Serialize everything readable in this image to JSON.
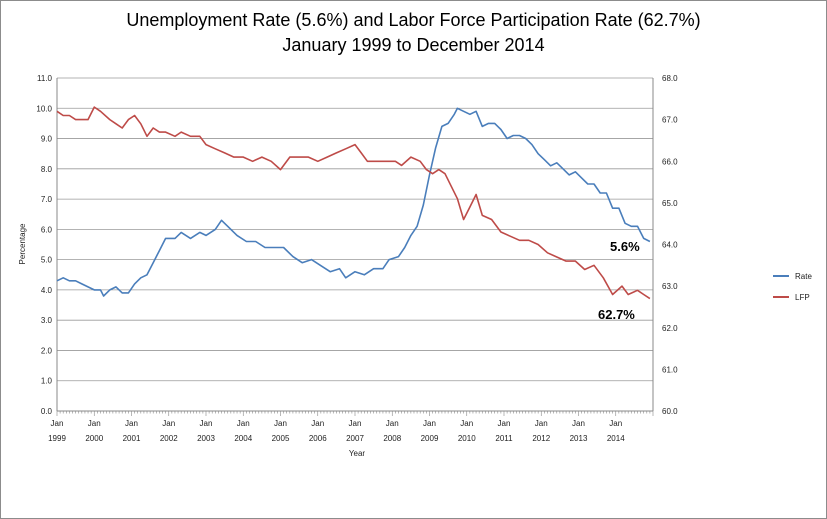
{
  "chart_data": {
    "type": "line",
    "title": "Unemployment Rate (5.6%) and Labor Force Participation Rate (62.7%)",
    "subtitle": "January 1999 to December 2014",
    "xlabel": "Year",
    "ylabel": "Percentage",
    "ylim": [
      0,
      11
    ],
    "y2lim": [
      60,
      68
    ],
    "yticks": [
      "0.0",
      "1.0",
      "2.0",
      "3.0",
      "4.0",
      "5.0",
      "6.0",
      "7.0",
      "8.0",
      "9.0",
      "10.0",
      "11.0"
    ],
    "y2ticks": [
      "60.0",
      "61.0",
      "62.0",
      "63.0",
      "64.0",
      "65.0",
      "66.0",
      "67.0",
      "68.0"
    ],
    "xticks": [
      {
        "month": "Jan",
        "year": "1999"
      },
      {
        "month": "Jan",
        "year": "2000"
      },
      {
        "month": "Jan",
        "year": "2001"
      },
      {
        "month": "Jan",
        "year": "2002"
      },
      {
        "month": "Jan",
        "year": "2003"
      },
      {
        "month": "Jan",
        "year": "2004"
      },
      {
        "month": "Jan",
        "year": "2005"
      },
      {
        "month": "Jan",
        "year": "2006"
      },
      {
        "month": "Jan",
        "year": "2007"
      },
      {
        "month": "Jan",
        "year": "2008"
      },
      {
        "month": "Jan",
        "year": "2009"
      },
      {
        "month": "Jan",
        "year": "2010"
      },
      {
        "month": "Jan",
        "year": "2011"
      },
      {
        "month": "Jan",
        "year": "2012"
      },
      {
        "month": "Jan",
        "year": "2013"
      },
      {
        "month": "Jan",
        "year": "2014"
      }
    ],
    "grid": true,
    "legend_position": "right",
    "series": [
      {
        "name": "Rate",
        "axis": "left",
        "color": "#4a7ebb",
        "points": [
          [
            "1999-01",
            4.3
          ],
          [
            "1999-03",
            4.4
          ],
          [
            "1999-05",
            4.3
          ],
          [
            "1999-07",
            4.3
          ],
          [
            "1999-09",
            4.2
          ],
          [
            "1999-11",
            4.1
          ],
          [
            "2000-01",
            4.0
          ],
          [
            "2000-03",
            4.0
          ],
          [
            "2000-04",
            3.8
          ],
          [
            "2000-06",
            4.0
          ],
          [
            "2000-08",
            4.1
          ],
          [
            "2000-10",
            3.9
          ],
          [
            "2000-12",
            3.9
          ],
          [
            "2001-02",
            4.2
          ],
          [
            "2001-04",
            4.4
          ],
          [
            "2001-06",
            4.5
          ],
          [
            "2001-08",
            4.9
          ],
          [
            "2001-10",
            5.3
          ],
          [
            "2001-12",
            5.7
          ],
          [
            "2002-03",
            5.7
          ],
          [
            "2002-05",
            5.9
          ],
          [
            "2002-08",
            5.7
          ],
          [
            "2002-11",
            5.9
          ],
          [
            "2003-01",
            5.8
          ],
          [
            "2003-04",
            6.0
          ],
          [
            "2003-06",
            6.3
          ],
          [
            "2003-08",
            6.1
          ],
          [
            "2003-11",
            5.8
          ],
          [
            "2004-02",
            5.6
          ],
          [
            "2004-05",
            5.6
          ],
          [
            "2004-08",
            5.4
          ],
          [
            "2004-11",
            5.4
          ],
          [
            "2005-02",
            5.4
          ],
          [
            "2005-05",
            5.1
          ],
          [
            "2005-08",
            4.9
          ],
          [
            "2005-11",
            5.0
          ],
          [
            "2006-02",
            4.8
          ],
          [
            "2006-05",
            4.6
          ],
          [
            "2006-08",
            4.7
          ],
          [
            "2006-10",
            4.4
          ],
          [
            "2007-01",
            4.6
          ],
          [
            "2007-04",
            4.5
          ],
          [
            "2007-07",
            4.7
          ],
          [
            "2007-10",
            4.7
          ],
          [
            "2007-12",
            5.0
          ],
          [
            "2008-03",
            5.1
          ],
          [
            "2008-05",
            5.4
          ],
          [
            "2008-07",
            5.8
          ],
          [
            "2008-09",
            6.1
          ],
          [
            "2008-11",
            6.8
          ],
          [
            "2009-01",
            7.8
          ],
          [
            "2009-03",
            8.7
          ],
          [
            "2009-05",
            9.4
          ],
          [
            "2009-07",
            9.5
          ],
          [
            "2009-09",
            9.8
          ],
          [
            "2009-10",
            10.0
          ],
          [
            "2009-12",
            9.9
          ],
          [
            "2010-02",
            9.8
          ],
          [
            "2010-04",
            9.9
          ],
          [
            "2010-06",
            9.4
          ],
          [
            "2010-08",
            9.5
          ],
          [
            "2010-10",
            9.5
          ],
          [
            "2010-12",
            9.3
          ],
          [
            "2011-02",
            9.0
          ],
          [
            "2011-04",
            9.1
          ],
          [
            "2011-06",
            9.1
          ],
          [
            "2011-08",
            9.0
          ],
          [
            "2011-10",
            8.8
          ],
          [
            "2011-12",
            8.5
          ],
          [
            "2012-02",
            8.3
          ],
          [
            "2012-04",
            8.1
          ],
          [
            "2012-06",
            8.2
          ],
          [
            "2012-08",
            8.0
          ],
          [
            "2012-10",
            7.8
          ],
          [
            "2012-12",
            7.9
          ],
          [
            "2013-02",
            7.7
          ],
          [
            "2013-04",
            7.5
          ],
          [
            "2013-06",
            7.5
          ],
          [
            "2013-08",
            7.2
          ],
          [
            "2013-10",
            7.2
          ],
          [
            "2013-12",
            6.7
          ],
          [
            "2014-02",
            6.7
          ],
          [
            "2014-04",
            6.2
          ],
          [
            "2014-06",
            6.1
          ],
          [
            "2014-08",
            6.1
          ],
          [
            "2014-10",
            5.7
          ],
          [
            "2014-12",
            5.6
          ]
        ]
      },
      {
        "name": "LFP",
        "axis": "right",
        "color": "#be4b48",
        "points": [
          [
            "1999-01",
            67.2
          ],
          [
            "1999-03",
            67.1
          ],
          [
            "1999-05",
            67.1
          ],
          [
            "1999-07",
            67.0
          ],
          [
            "1999-09",
            67.0
          ],
          [
            "1999-11",
            67.0
          ],
          [
            "2000-01",
            67.3
          ],
          [
            "2000-03",
            67.2
          ],
          [
            "2000-06",
            67.0
          ],
          [
            "2000-08",
            66.9
          ],
          [
            "2000-10",
            66.8
          ],
          [
            "2000-12",
            67.0
          ],
          [
            "2001-02",
            67.1
          ],
          [
            "2001-04",
            66.9
          ],
          [
            "2001-06",
            66.6
          ],
          [
            "2001-08",
            66.8
          ],
          [
            "2001-10",
            66.7
          ],
          [
            "2001-12",
            66.7
          ],
          [
            "2002-03",
            66.6
          ],
          [
            "2002-05",
            66.7
          ],
          [
            "2002-08",
            66.6
          ],
          [
            "2002-11",
            66.6
          ],
          [
            "2003-01",
            66.4
          ],
          [
            "2003-04",
            66.3
          ],
          [
            "2003-07",
            66.2
          ],
          [
            "2003-10",
            66.1
          ],
          [
            "2004-01",
            66.1
          ],
          [
            "2004-04",
            66.0
          ],
          [
            "2004-07",
            66.1
          ],
          [
            "2004-10",
            66.0
          ],
          [
            "2005-01",
            65.8
          ],
          [
            "2005-04",
            66.1
          ],
          [
            "2005-07",
            66.1
          ],
          [
            "2005-10",
            66.1
          ],
          [
            "2006-01",
            66.0
          ],
          [
            "2006-04",
            66.1
          ],
          [
            "2006-07",
            66.2
          ],
          [
            "2006-10",
            66.3
          ],
          [
            "2007-01",
            66.4
          ],
          [
            "2007-03",
            66.2
          ],
          [
            "2007-05",
            66.0
          ],
          [
            "2007-08",
            66.0
          ],
          [
            "2007-11",
            66.0
          ],
          [
            "2008-02",
            66.0
          ],
          [
            "2008-04",
            65.9
          ],
          [
            "2008-07",
            66.1
          ],
          [
            "2008-10",
            66.0
          ],
          [
            "2008-12",
            65.8
          ],
          [
            "2009-02",
            65.7
          ],
          [
            "2009-04",
            65.8
          ],
          [
            "2009-06",
            65.7
          ],
          [
            "2009-08",
            65.4
          ],
          [
            "2009-10",
            65.1
          ],
          [
            "2009-12",
            64.6
          ],
          [
            "2010-02",
            64.9
          ],
          [
            "2010-04",
            65.2
          ],
          [
            "2010-06",
            64.7
          ],
          [
            "2010-09",
            64.6
          ],
          [
            "2010-12",
            64.3
          ],
          [
            "2011-03",
            64.2
          ],
          [
            "2011-06",
            64.1
          ],
          [
            "2011-09",
            64.1
          ],
          [
            "2011-12",
            64.0
          ],
          [
            "2012-03",
            63.8
          ],
          [
            "2012-06",
            63.7
          ],
          [
            "2012-09",
            63.6
          ],
          [
            "2012-12",
            63.6
          ],
          [
            "2013-03",
            63.4
          ],
          [
            "2013-06",
            63.5
          ],
          [
            "2013-09",
            63.2
          ],
          [
            "2013-12",
            62.8
          ],
          [
            "2014-03",
            63.0
          ],
          [
            "2014-05",
            62.8
          ],
          [
            "2014-08",
            62.9
          ],
          [
            "2014-10",
            62.8
          ],
          [
            "2014-12",
            62.7
          ]
        ]
      }
    ],
    "annotations": [
      {
        "text": "5.6%",
        "series": "Rate"
      },
      {
        "text": "62.7%",
        "series": "LFP"
      }
    ]
  }
}
